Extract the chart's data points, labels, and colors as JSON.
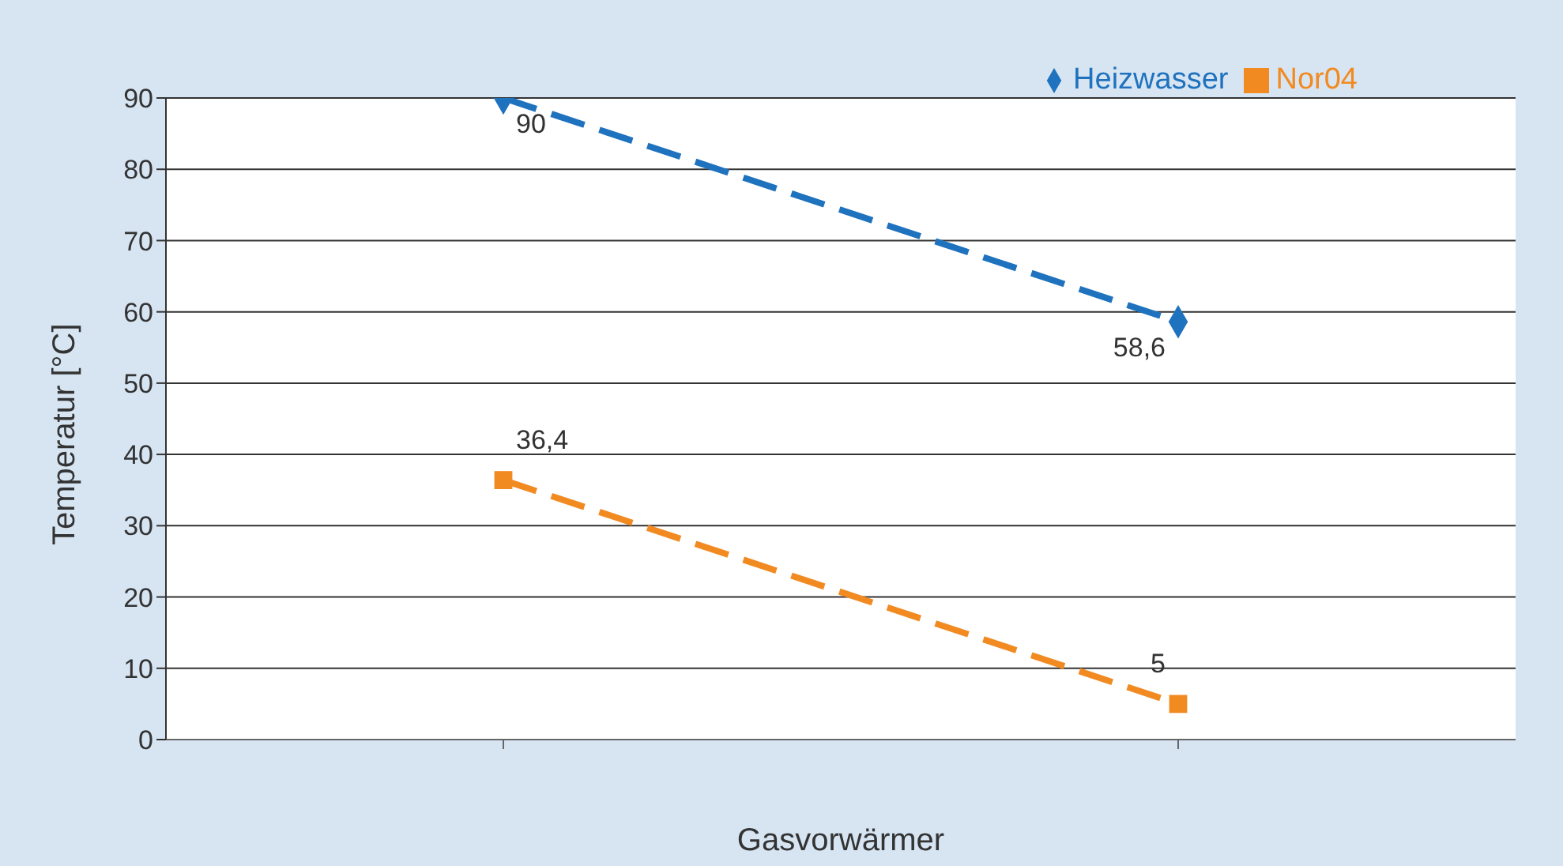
{
  "chart_data": {
    "type": "line",
    "xlabel": "Gasvorwärmer",
    "ylabel": "Temperatur [°C]",
    "categories": [
      null,
      null
    ],
    "series": [
      {
        "name": "Heizwasser",
        "color": "#1f72bd",
        "values": [
          90,
          58.6
        ],
        "marker": "diamond",
        "value_labels": [
          "90",
          "58,6"
        ]
      },
      {
        "name": "Nor04",
        "color": "#f28a22",
        "values": [
          36.4,
          5
        ],
        "marker": "square",
        "value_labels": [
          "36,4",
          "5"
        ]
      }
    ],
    "ylim": [
      0,
      90
    ],
    "yticks": [
      0,
      10,
      20,
      30,
      40,
      50,
      60,
      70,
      80,
      90
    ],
    "grid": "y",
    "legend": "top right",
    "line_style": "dashed"
  }
}
